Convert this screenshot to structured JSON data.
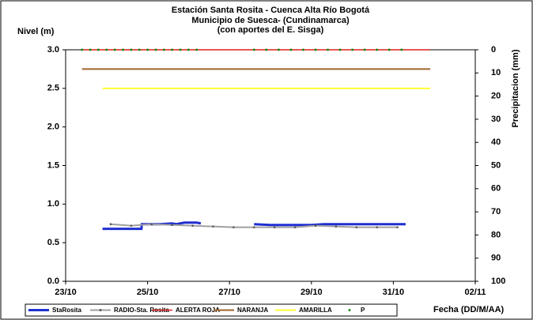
{
  "chart_data": {
    "type": "line",
    "title": [
      "Estación Santa Rosita - Cuenca Alta Río Bogotá",
      "Municipio de Suesca- (Cundinamarca)",
      "(con aportes del  E. Sisga)"
    ],
    "ylabel": "Nivel (m)",
    "y2label": "Precipitacion (mm)",
    "xlabel": "Fecha (DD/M/AA)",
    "xlim": [
      23,
      33
    ],
    "xticks": [
      {
        "value": 23,
        "label": "23/10"
      },
      {
        "value": 25,
        "label": "25/10"
      },
      {
        "value": 27,
        "label": "27/10"
      },
      {
        "value": 29,
        "label": "29/10"
      },
      {
        "value": 31,
        "label": "31/10"
      },
      {
        "value": 33,
        "label": "02/11"
      }
    ],
    "ylim": [
      0,
      3
    ],
    "yticks": [
      {
        "value": 0,
        "label": "0.0"
      },
      {
        "value": 0.5,
        "label": "0.5"
      },
      {
        "value": 1,
        "label": "1.0"
      },
      {
        "value": 1.5,
        "label": "1.5"
      },
      {
        "value": 2,
        "label": "2.0"
      },
      {
        "value": 2.5,
        "label": "2.5"
      },
      {
        "value": 3,
        "label": "3.0"
      }
    ],
    "y2lim": [
      100,
      0
    ],
    "y2ticks": [
      0,
      10,
      20,
      30,
      40,
      50,
      60,
      70,
      80,
      90,
      100
    ],
    "series": [
      {
        "name": "StaRosita",
        "color": "#1f2fd0",
        "width": 3,
        "x": [
          23.9,
          24.85,
          24.86,
          25.3,
          25.6,
          25.7,
          25.9,
          26.2,
          26.3,
          27.0,
          27.6,
          28.0,
          29.0,
          29.3,
          31.3
        ],
        "values": [
          0.68,
          0.68,
          0.74,
          0.74,
          0.75,
          0.74,
          0.76,
          0.76,
          0.75,
          null,
          0.74,
          0.73,
          0.73,
          0.74,
          0.74
        ]
      },
      {
        "name": "RADIO-Sta. Rosita",
        "color": "#a0a0a0",
        "width": 2,
        "markers": true,
        "x": [
          24.1,
          24.6,
          25.1,
          25.6,
          26.1,
          26.6,
          27.1,
          27.6,
          28.1,
          28.6,
          29.1,
          29.6,
          30.1,
          30.6,
          31.1
        ],
        "values": [
          0.74,
          0.72,
          0.74,
          0.73,
          0.72,
          0.71,
          0.7,
          0.7,
          0.7,
          0.7,
          0.72,
          0.71,
          0.7,
          0.7,
          0.7
        ]
      },
      {
        "name": "ALERTA ROJA",
        "color": "#e02020",
        "width": 1.5,
        "x": [
          23.4,
          31.9
        ],
        "values": [
          3,
          3
        ]
      },
      {
        "name": "NARANJA",
        "color": "#a0642a",
        "width": 2,
        "x": [
          23.4,
          31.9
        ],
        "values": [
          2.75,
          2.75
        ]
      },
      {
        "name": "AMARILLA",
        "color": "#ffff33",
        "width": 2,
        "x": [
          23.9,
          31.9
        ],
        "values": [
          2.5,
          2.5
        ]
      },
      {
        "name": "P",
        "color": "#1a8a1a",
        "axis": "y2",
        "line": false,
        "markers": true,
        "x": [
          23.4,
          23.6,
          23.8,
          24.0,
          24.2,
          24.4,
          24.6,
          24.8,
          25.0,
          25.2,
          25.4,
          25.6,
          25.8,
          26.0,
          26.2,
          27.6,
          27.9,
          28.2,
          28.5,
          28.8,
          29.1,
          29.4,
          29.7,
          30.0,
          30.3,
          30.6,
          30.9,
          31.2
        ],
        "values": [
          0,
          0,
          0,
          0,
          0,
          0,
          0,
          0,
          0,
          0,
          0,
          0,
          0,
          0,
          0,
          0,
          0,
          0,
          0,
          0,
          0,
          0,
          0,
          0,
          0,
          0,
          0,
          0
        ]
      }
    ]
  }
}
